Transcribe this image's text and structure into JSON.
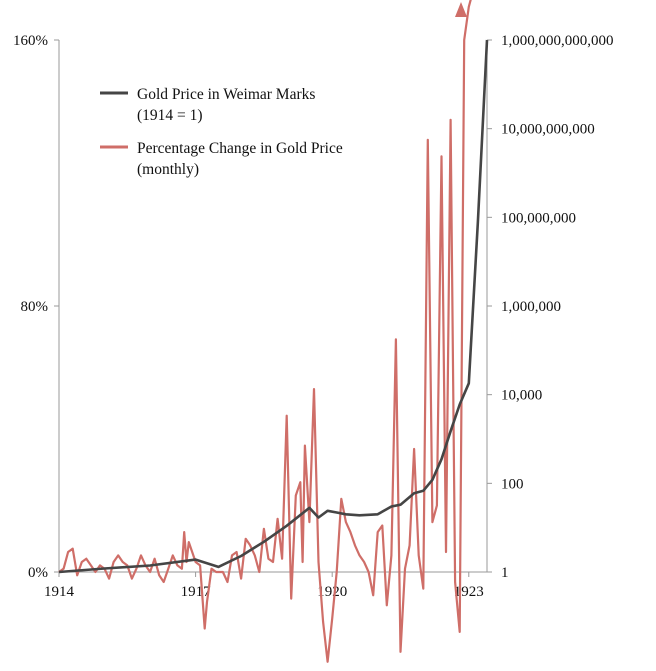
{
  "chart_data": {
    "type": "line",
    "title": "",
    "xlabel": "",
    "colors": {
      "gold_price": "#454545",
      "pct_change": "#cf6e68",
      "axis": "#9a9a9a"
    },
    "x_ticks": [
      "1914",
      "1917",
      "1920",
      "1923"
    ],
    "x_range": [
      1914,
      1923.4
    ],
    "left_axis": {
      "ticks": [
        "0%",
        "80%",
        "160%"
      ],
      "ylim": [
        -28,
        160
      ],
      "unit": "percent"
    },
    "right_axis": {
      "ticks": [
        "1",
        "100",
        "10,000",
        "1,000,000",
        "100,000,000",
        "10,000,000,000",
        "1,000,000,000,000"
      ],
      "scale": "log10",
      "ylim": [
        1,
        1000000000000
      ]
    },
    "legend": {
      "position": "top-left",
      "entries": [
        {
          "line1": "Gold Price in Weimar Marks",
          "line2": "(1914 = 1)"
        },
        {
          "line1": "Percentage Change in Gold Price",
          "line2": "(monthly)"
        }
      ]
    },
    "series": [
      {
        "name": "Gold Price in Weimar Marks (1914 = 1)",
        "axis": "right",
        "x": [
          1914.0,
          1915.0,
          1916.0,
          1917.0,
          1917.5,
          1918.0,
          1918.5,
          1919.0,
          1919.5,
          1919.7,
          1919.9,
          1920.1,
          1920.3,
          1920.6,
          1921.0,
          1921.3,
          1921.5,
          1921.8,
          1922.0,
          1922.2,
          1922.4,
          1922.6,
          1922.8,
          1923.0,
          1923.2,
          1923.4
        ],
        "y": [
          1,
          1.2,
          1.4,
          1.9,
          1.3,
          2.3,
          4.8,
          11,
          28,
          17,
          24,
          22,
          20,
          19,
          20,
          30,
          33,
          60,
          68,
          120,
          350,
          1500,
          6000,
          18000,
          80000000,
          1000000000000
        ]
      },
      {
        "name": "Percentage Change in Gold Price (monthly)",
        "axis": "left",
        "x": [
          1914.0,
          1914.1,
          1914.2,
          1914.3,
          1914.4,
          1914.5,
          1914.6,
          1914.7,
          1914.8,
          1914.9,
          1915.0,
          1915.1,
          1915.2,
          1915.3,
          1915.4,
          1915.5,
          1915.6,
          1915.7,
          1915.8,
          1915.9,
          1916.0,
          1916.1,
          1916.2,
          1916.3,
          1916.4,
          1916.5,
          1916.6,
          1916.7,
          1916.75,
          1916.8,
          1916.85,
          1917.0,
          1917.1,
          1917.2,
          1917.25,
          1917.35,
          1917.45,
          1917.6,
          1917.7,
          1917.8,
          1917.9,
          1918.0,
          1918.1,
          1918.2,
          1918.3,
          1918.4,
          1918.5,
          1918.6,
          1918.7,
          1918.8,
          1918.9,
          1919.0,
          1919.1,
          1919.2,
          1919.3,
          1919.35,
          1919.4,
          1919.5,
          1919.6,
          1919.7,
          1919.8,
          1919.9,
          1920.0,
          1920.1,
          1920.2,
          1920.3,
          1920.4,
          1920.5,
          1920.6,
          1920.7,
          1920.8,
          1920.9,
          1921.0,
          1921.1,
          1921.2,
          1921.3,
          1921.4,
          1921.5,
          1921.6,
          1921.7,
          1921.8,
          1921.9,
          1922.0,
          1922.1,
          1922.2,
          1922.3,
          1922.4,
          1922.5,
          1922.6,
          1922.7,
          1922.8,
          1922.9,
          1923.0,
          1923.1,
          1923.2,
          1923.3
        ],
        "y": [
          0,
          1,
          6,
          7,
          -1,
          3,
          4,
          2,
          0,
          2,
          1,
          -2,
          3,
          5,
          3,
          2,
          -2,
          1,
          5,
          2,
          0,
          4,
          -1,
          -3,
          1,
          5,
          2,
          1,
          12,
          3,
          9,
          3,
          2,
          -17,
          -9,
          1,
          0,
          0,
          -3,
          5,
          6,
          -2,
          10,
          8,
          5,
          0,
          13,
          4,
          3,
          16,
          4,
          47,
          -8,
          23,
          27,
          3,
          38,
          15,
          55,
          3,
          -15,
          -27,
          -14,
          0,
          22,
          15,
          12,
          8,
          5,
          3,
          0,
          -7,
          12,
          14,
          -10,
          5,
          70,
          -24,
          1,
          8,
          37,
          5,
          -5,
          130,
          15,
          20,
          125,
          6,
          136,
          -3,
          -18,
          160,
          170,
          175,
          190,
          200
        ]
      }
    ]
  }
}
